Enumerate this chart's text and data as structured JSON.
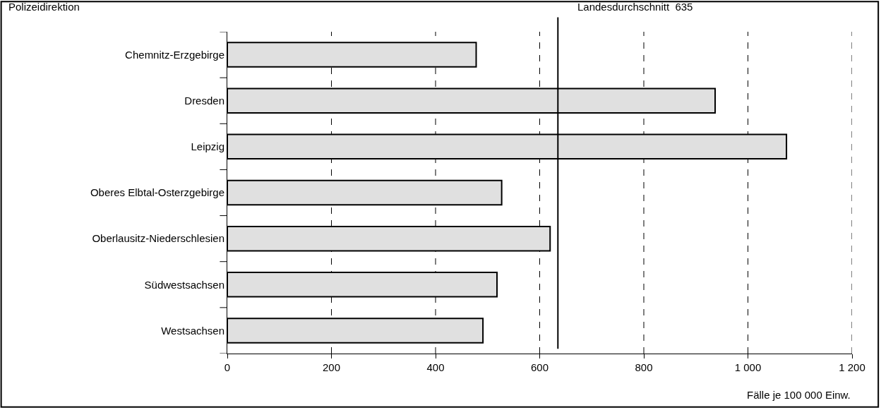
{
  "chart_data": {
    "type": "bar",
    "orientation": "horizontal",
    "ylabel": "Polizeidirektion",
    "xlabel": "Fälle je 100 000 Einw.",
    "categories": [
      "Chemnitz-Erzgebirge",
      "Dresden",
      "Leipzig",
      "Oberes Elbtal-Osterzgebirge",
      "Oberlausitz-Niederschlesien",
      "Südwestsachsen",
      "Westsachsen"
    ],
    "values": [
      478,
      937,
      1074,
      527,
      620,
      518,
      491
    ],
    "color": "#e0e0e0",
    "xlim": [
      0,
      1200
    ],
    "xticks": [
      0,
      200,
      400,
      600,
      800,
      {
        "value": 1000,
        "label": "1 000"
      },
      {
        "value": 1200,
        "label": "1 200"
      }
    ],
    "grid": "x",
    "legend": false,
    "ref_lines": [
      {
        "axis": "x",
        "value": 635,
        "label": "Landesdurchschnitt  635",
        "color": "#000000",
        "line_style": "solid"
      }
    ]
  }
}
